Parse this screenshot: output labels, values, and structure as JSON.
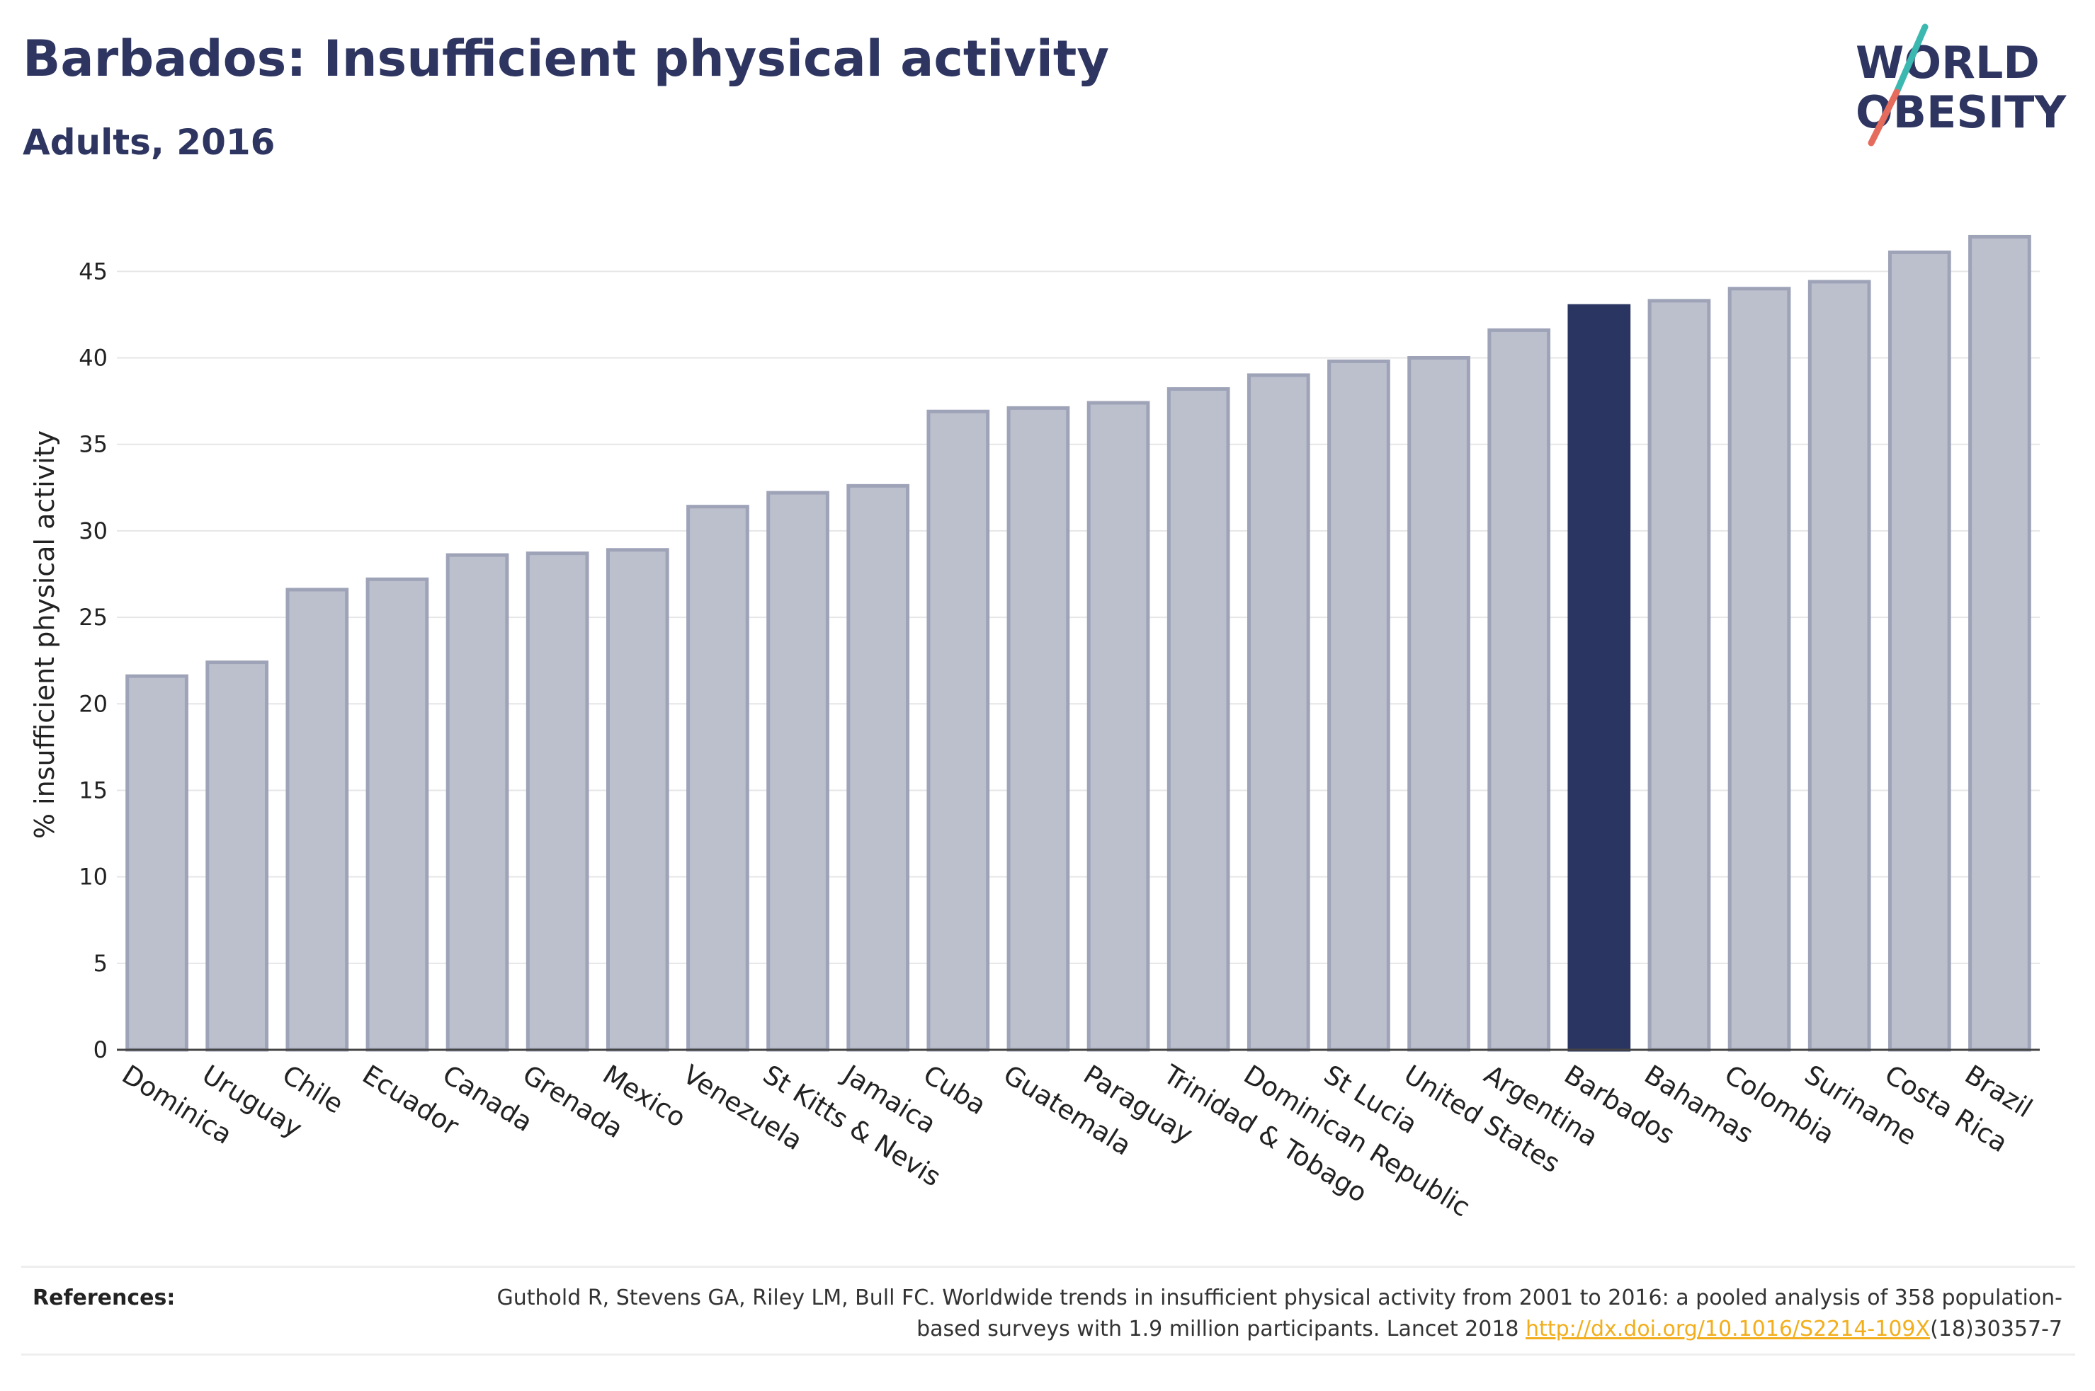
{
  "header": {
    "title": "Barbados: Insufficient physical activity",
    "subtitle": "Adults, 2016"
  },
  "logo": {
    "line1": "WORLD",
    "line2": "OBESITY",
    "accent_teal": "#3bb8b0",
    "accent_coral": "#e56b5c",
    "text_color": "#2d3560"
  },
  "chart_data": {
    "type": "bar",
    "ylabel": "% insufficient physical activity",
    "xlabel": "",
    "ylim": [
      0,
      48
    ],
    "yticks": [
      0,
      5,
      10,
      15,
      20,
      25,
      30,
      35,
      40,
      45
    ],
    "grid": true,
    "highlight": "Barbados",
    "colors": {
      "bar": "#bcbfcc",
      "bar_border": "#9ea3b8",
      "highlight": "#2b3561"
    },
    "categories": [
      "Dominica",
      "Uruguay",
      "Chile",
      "Ecuador",
      "Canada",
      "Grenada",
      "Mexico",
      "Venezuela",
      "St Kitts & Nevis",
      "Jamaica",
      "Cuba",
      "Guatemala",
      "Paraguay",
      "Trinidad & Tobago",
      "Dominican Republic",
      "St Lucia",
      "United States",
      "Argentina",
      "Barbados",
      "Bahamas",
      "Colombia",
      "Suriname",
      "Costa Rica",
      "Brazil"
    ],
    "values": [
      21.6,
      22.4,
      26.6,
      27.2,
      28.6,
      28.7,
      28.9,
      31.4,
      32.2,
      32.6,
      36.9,
      37.1,
      37.4,
      38.2,
      39.0,
      39.8,
      40.0,
      41.6,
      43.0,
      43.3,
      44.0,
      44.4,
      46.1,
      47.0
    ]
  },
  "references": {
    "label": "References:",
    "text_before": "Guthold R, Stevens GA, Riley LM, Bull FC. Worldwide trends in insufficient physical activity from 2001 to 2016: a pooled analysis of 358 population-based surveys with 1.9 million participants. Lancet 2018 ",
    "link_text": "http://dx.doi.org/10.1016/S2214-109X",
    "text_after": "(18)30357-7"
  }
}
